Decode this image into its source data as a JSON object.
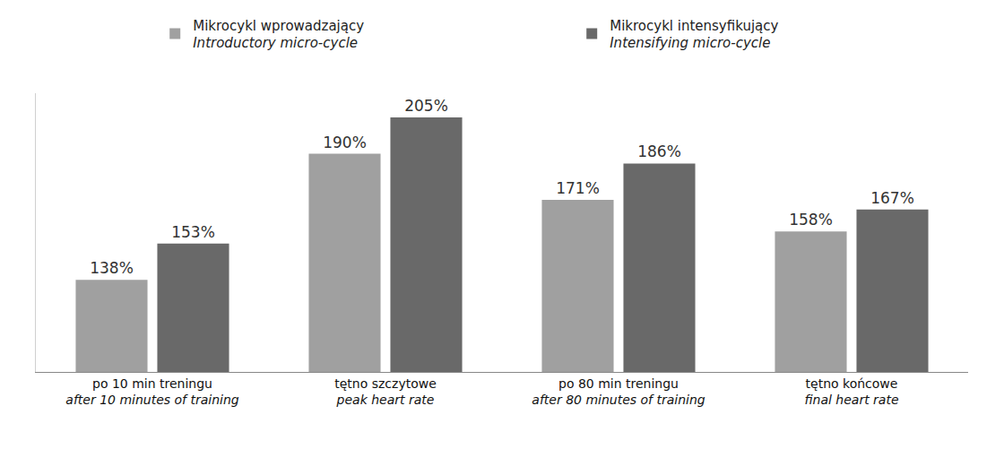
{
  "chart_data": {
    "type": "bar",
    "categories": [
      "po 10 min treningu",
      "tętno szczytowe",
      "po 80 min treningu",
      "tętno końcowe"
    ],
    "categories_en": [
      "after 10 minutes of training",
      "peak heart rate",
      "after 80 minutes of training",
      "final heart rate"
    ],
    "series": [
      {
        "name": "Mikrocykl wprowadzający",
        "name_en": "Introductory micro-cycle",
        "color": "#a0a0a0",
        "values": [
          138,
          190,
          171,
          158
        ],
        "value_labels": [
          "138%",
          "190%",
          "171%",
          "158%"
        ]
      },
      {
        "name": "Mikrocykl intensyfikujący",
        "name_en": "Intensifying micro-cycle",
        "color": "#696969",
        "values": [
          153,
          205,
          186,
          167
        ],
        "value_labels": [
          "153%",
          "205%",
          "186%",
          "167%"
        ]
      }
    ],
    "ylim": [
      100,
      215
    ],
    "yticks": [],
    "grid": false,
    "data_labels": true,
    "tick_labels": "x",
    "legend": "top"
  }
}
